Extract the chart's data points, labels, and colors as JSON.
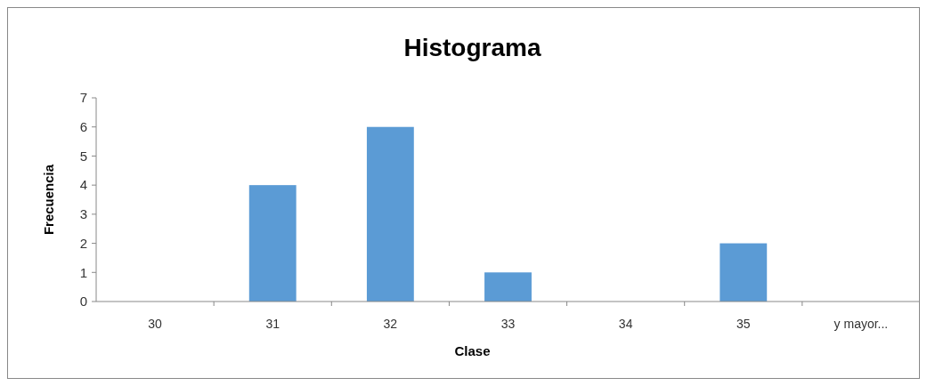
{
  "chart_data": {
    "type": "bar",
    "title": "Histograma",
    "xlabel": "Clase",
    "ylabel": "Frecuencia",
    "categories": [
      "30",
      "31",
      "32",
      "33",
      "34",
      "35",
      "y mayor..."
    ],
    "values": [
      0,
      4,
      6,
      1,
      0,
      2,
      0
    ],
    "color": "#5b9bd5",
    "ylim": [
      0,
      7
    ],
    "yticks": [
      0,
      1,
      2,
      3,
      4,
      5,
      6,
      7
    ]
  }
}
